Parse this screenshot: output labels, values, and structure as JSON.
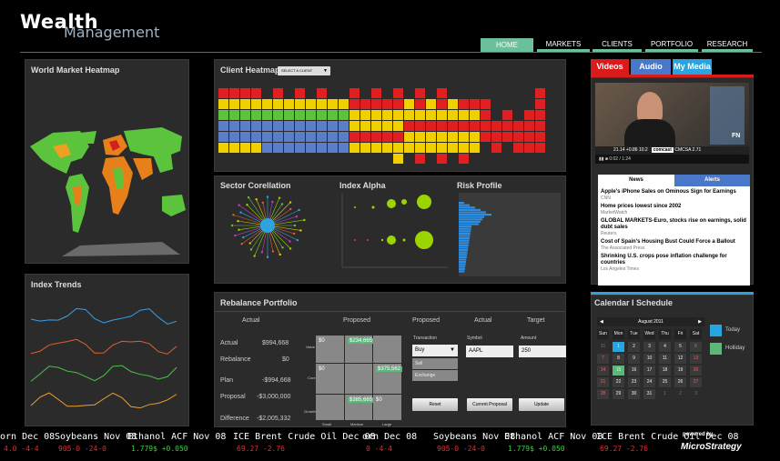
{
  "brand": {
    "line1": "Wealth",
    "line2": "Management",
    "powered": "powered by",
    "vendor": "MicroStrategy"
  },
  "nav": [
    {
      "label": "HOME",
      "active": true
    },
    {
      "label": "MARKETS"
    },
    {
      "label": "CLIENTS"
    },
    {
      "label": "PORTFOLIO"
    },
    {
      "label": "RESEARCH"
    }
  ],
  "world": {
    "title": "World Market Heatmap"
  },
  "trends": {
    "title": "Index Trends"
  },
  "heatmap": {
    "title": "Client Heatmap",
    "select": "SELECT A CLIENT"
  },
  "sector": {
    "title": "Sector Corellation"
  },
  "alpha": {
    "title": "Index Alpha"
  },
  "risk": {
    "title": "Risk Profile"
  },
  "rebalance": {
    "title": "Rebalance Portfolio",
    "head_actual": "Actual",
    "head_proposed": "Proposed",
    "head_proposed2": "Proposed",
    "head_actual2": "Actual",
    "head_target": "Target",
    "rows": [
      {
        "label": "Actual",
        "value": "$994,668"
      },
      {
        "label": "Rebalance",
        "value": "$0"
      },
      {
        "label": "Plan",
        "value": "-$994,668"
      },
      {
        "label": "Proposal",
        "value": "-$3,000,000"
      },
      {
        "label": "Difference",
        "value": "-$2,005,332"
      }
    ],
    "grid_row_labels": [
      "Value",
      "Core",
      "Growth"
    ],
    "grid_col_labels": [
      "Small",
      "Medium",
      "Large"
    ],
    "grid": [
      [
        "$0",
        "$234,665",
        ""
      ],
      [
        "$0",
        "",
        "$375,562"
      ],
      [
        "",
        "$385,665",
        "$0"
      ]
    ],
    "transaction_label": "Transaction",
    "transaction_value": "Buy",
    "menu_sell": "Sell",
    "menu_exchange": "Exchange",
    "symbol_label": "Symbol",
    "symbol_value": "AAPL",
    "amount_label": "Amount",
    "amount_value": "250",
    "btn_reset": "Reset",
    "btn_current": "Current Proposal",
    "btn_update": "Update"
  },
  "media": {
    "tabs": [
      "Videos",
      "Audio",
      "My Media"
    ],
    "video_ticker": "21.14 +0.86  10.2",
    "video_brand": "comcast",
    "video_logo": "FN",
    "video_sub": "CMCSA 2.71",
    "video_time": "0:02 / 1:24",
    "news_tab": "News",
    "alerts_tab": "Alerts",
    "news": [
      {
        "title": "Apple's iPhone Sales on Ominous Sign for Earnings",
        "src": "CNN"
      },
      {
        "title": "Home prices lowest since 2002",
        "src": "MarketWatch"
      },
      {
        "title": "GLOBAL MARKETS-Euro, stocks rise on earnings, solid dubt sales",
        "src": "Reuters"
      },
      {
        "title": "Cost of Spain's Housing Bust Could Force a Ballout",
        "src": "The Associated Press"
      },
      {
        "title": "Shrinking U.S. crops pose inflation challenge for countries",
        "src": "Los Angeles Times"
      }
    ]
  },
  "calendar": {
    "title": "Calendar I Schedule",
    "month": "August 2011",
    "days": [
      "Sun",
      "Mon",
      "Tue",
      "Wed",
      "Thu",
      "Fri",
      "Sat"
    ],
    "cells": [
      "31",
      "1",
      "2",
      "3",
      "4",
      "5",
      "6",
      "7",
      "8",
      "9",
      "10",
      "11",
      "12",
      "13",
      "14",
      "15",
      "16",
      "17",
      "18",
      "19",
      "20",
      "21",
      "22",
      "23",
      "24",
      "25",
      "26",
      "27",
      "28",
      "29",
      "30",
      "31",
      "1",
      "2",
      "3"
    ],
    "legend_today": "Today",
    "legend_holiday": "Holliday"
  },
  "ticker": {
    "top": [
      "orn Dec 08",
      "Soybeans Nov 08",
      "Ethanol ACF Nov 08",
      "ICE Brent Crude Oil Dec 08",
      "orn Dec 08",
      "Soybeans Nov 08",
      "Ethanol ACF Nov 08",
      "ICE Brent Crude Oil Dec 08"
    ],
    "bottom": [
      "4.0 -4-4",
      "905-0 -24-0",
      "1.779$ +0.050",
      "69.27 -2.76",
      "0 -4-4",
      "905-0 -24-0",
      "1.779$ +0.050",
      "69.27 -2.76"
    ]
  },
  "colors": {
    "nav": "#6bbf9a",
    "red": "#e02020",
    "yellow": "#f0d000",
    "green": "#5cc43c",
    "blue": "#5a7fc8",
    "grey": "#9a9a9a",
    "videos": "#d91b1b",
    "audio": "#4a78c8",
    "mymedia": "#2aa4e0"
  }
}
